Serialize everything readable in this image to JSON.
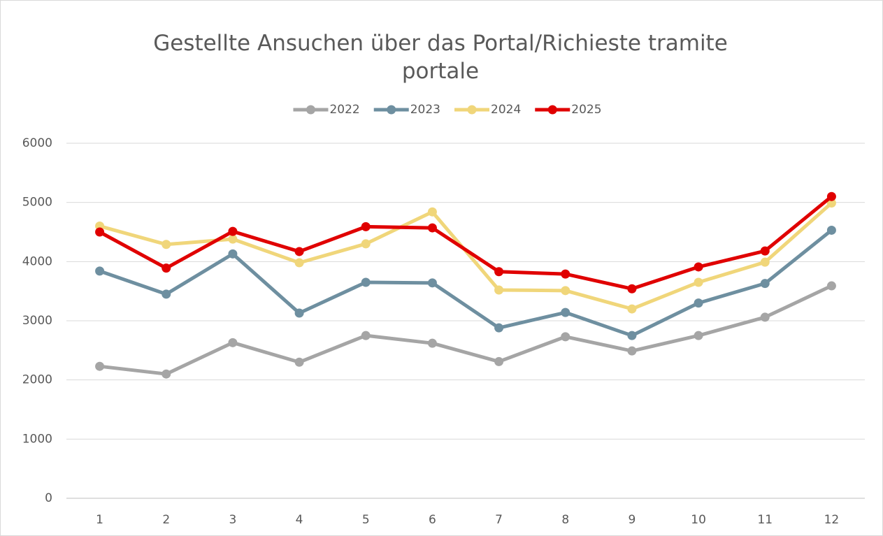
{
  "chart_data": {
    "type": "line",
    "title": "Gestellte Ansuchen über das Portal/Richieste tramite portale",
    "categories": [
      "1",
      "2",
      "3",
      "4",
      "5",
      "6",
      "7",
      "8",
      "9",
      "10",
      "11",
      "12"
    ],
    "series": [
      {
        "name": "2022",
        "color": "#a5a5a5",
        "values": [
          2230,
          2100,
          2630,
          2300,
          2750,
          2620,
          2310,
          2730,
          2490,
          2750,
          3060,
          3590
        ]
      },
      {
        "name": "2023",
        "color": "#6e8fa0",
        "values": [
          3840,
          3450,
          4130,
          3130,
          3650,
          3640,
          2880,
          3140,
          2750,
          3300,
          3630,
          4530
        ]
      },
      {
        "name": "2024",
        "color": "#f0d67a",
        "values": [
          4600,
          4290,
          4380,
          3980,
          4300,
          4840,
          3520,
          3510,
          3200,
          3650,
          3990,
          4990
        ]
      },
      {
        "name": "2025",
        "color": "#e00000",
        "values": [
          4500,
          3890,
          4510,
          4170,
          4590,
          4570,
          3830,
          3790,
          3540,
          3910,
          4180,
          5100
        ]
      }
    ],
    "ylim": [
      0,
      6000
    ],
    "yticks": [
      0,
      1000,
      2000,
      3000,
      4000,
      5000,
      6000
    ],
    "grid": true,
    "legend": "top"
  }
}
